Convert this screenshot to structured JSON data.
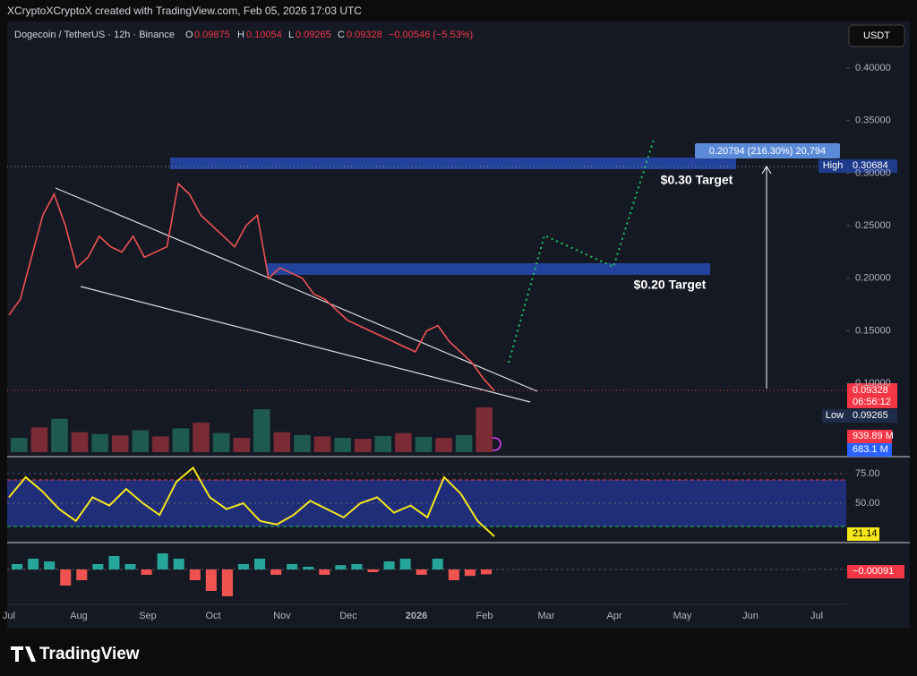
{
  "header": {
    "caption": "XCryptoXCryptoX created with TradingView.com, Feb 05, 2026 17:03 UTC"
  },
  "legend": {
    "symbol": "Dogecoin / TetherUS · 12h · Binance",
    "o_label": "O",
    "o": "0.09875",
    "h_label": "H",
    "h": "0.10054",
    "l_label": "L",
    "l": "0.09265",
    "c_label": "C",
    "c": "0.09328",
    "change": "−0.00546 (−5.53%)"
  },
  "currency": "USDT",
  "price_axis": {
    "ticks": [
      {
        "value": 0.4,
        "label": "0.40000"
      },
      {
        "value": 0.35,
        "label": "0.35000"
      },
      {
        "value": 0.3,
        "label": "0.30000"
      },
      {
        "value": 0.25,
        "label": "0.25000"
      },
      {
        "value": 0.2,
        "label": "0.20000"
      },
      {
        "value": 0.15,
        "label": "0.15000"
      },
      {
        "value": 0.1,
        "label": "0.10000"
      }
    ]
  },
  "time_axis": [
    "Jul",
    "Aug",
    "Sep",
    "Oct",
    "Nov",
    "Dec",
    "2026",
    "Feb",
    "Mar",
    "Apr",
    "May",
    "Jun",
    "Jul"
  ],
  "closes": [
    0.165,
    0.18,
    0.22,
    0.26,
    0.28,
    0.25,
    0.21,
    0.22,
    0.24,
    0.23,
    0.225,
    0.24,
    0.22,
    0.225,
    0.23,
    0.29,
    0.28,
    0.26,
    0.25,
    0.24,
    0.23,
    0.25,
    0.26,
    0.2,
    0.21,
    0.205,
    0.2,
    0.185,
    0.18,
    0.17,
    0.16,
    0.155,
    0.15,
    0.145,
    0.14,
    0.135,
    0.13,
    0.15,
    0.155,
    0.14,
    0.13,
    0.12,
    0.105,
    0.093
  ],
  "badges": {
    "last_price": "0.09328",
    "countdown": "06:56:12",
    "high_label": "High",
    "high": "0.30684",
    "low_label": "Low",
    "low": "0.09265",
    "measure": "0.20794 (216.30%) 20,794"
  },
  "targets": [
    "$0.30 Target",
    "$0.20 Target"
  ],
  "volume": {
    "values": [
      300,
      520,
      700,
      420,
      380,
      350,
      460,
      330,
      500,
      620,
      400,
      300,
      900,
      420,
      360,
      330,
      300,
      280,
      340,
      400,
      320,
      300,
      360,
      940
    ],
    "labels": [
      "939.89 M",
      "683.1 M"
    ]
  },
  "rsi": {
    "ticks": [
      {
        "value": 75,
        "label": "75.00"
      },
      {
        "value": 50,
        "label": "50.00"
      }
    ],
    "values": [
      55,
      72,
      60,
      45,
      35,
      55,
      48,
      62,
      50,
      40,
      68,
      80,
      55,
      45,
      50,
      35,
      32,
      40,
      52,
      45,
      38,
      50,
      55,
      42,
      48,
      38,
      72,
      58,
      35,
      22
    ],
    "last": "21.14"
  },
  "macd": {
    "values": [
      0.001,
      0.002,
      0.0015,
      -0.003,
      -0.002,
      0.001,
      0.0025,
      0.001,
      -0.001,
      0.003,
      0.002,
      -0.002,
      -0.004,
      -0.005,
      0.001,
      0.002,
      -0.001,
      0.001,
      0.0005,
      -0.001,
      0.0008,
      0.001,
      -0.0005,
      0.0015,
      0.002,
      -0.001,
      0.002,
      -0.002,
      -0.0012,
      -0.0009
    ],
    "last": "−0.00091"
  },
  "footer": {
    "brand": "TradingView"
  }
}
